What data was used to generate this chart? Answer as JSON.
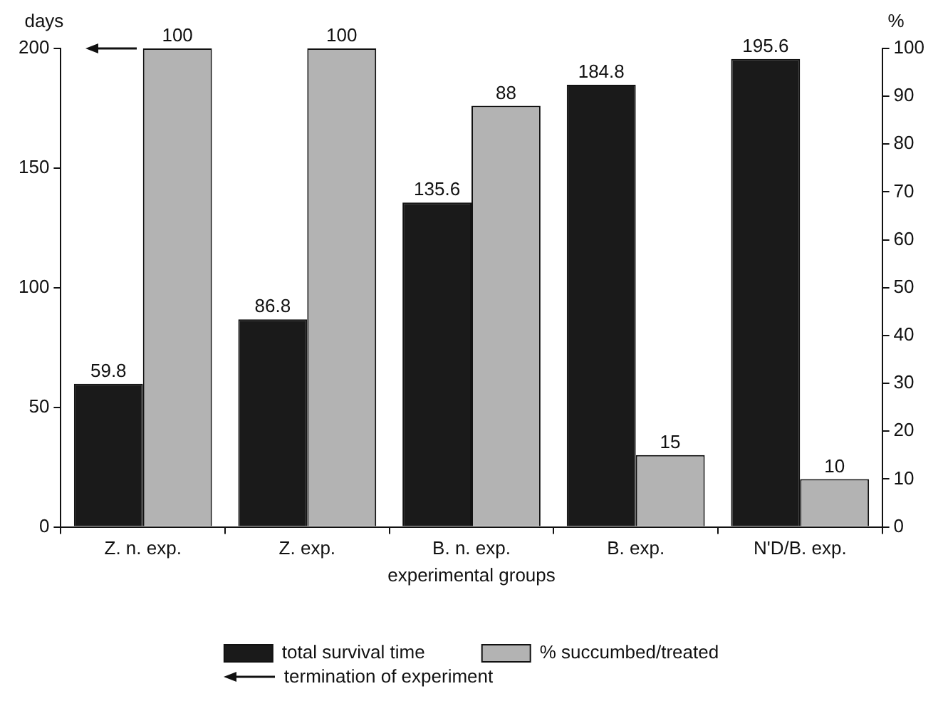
{
  "chart_data": {
    "type": "bar",
    "xlabel": "experimental groups",
    "ylabel": "days",
    "y2label": "%",
    "categories": [
      "Z. n. exp.",
      "Z. exp.",
      "B. n. exp.",
      "B. exp.",
      "N'D/B. exp."
    ],
    "series": [
      {
        "name": "total survival time",
        "color": "#1a1a1a",
        "values": [
          59.8,
          86.8,
          135.6,
          184.8,
          195.6
        ]
      },
      {
        "name": "% succumbed/treated",
        "color": "#b3b3b3",
        "axis": "y2",
        "values": [
          100,
          100,
          88,
          15,
          10
        ]
      }
    ],
    "ylim": [
      0,
      200
    ],
    "yticks": [
      0,
      50,
      100,
      150,
      200
    ],
    "y2lim": [
      0,
      100
    ],
    "y2ticks": [
      0,
      10,
      20,
      30,
      40,
      50,
      60,
      70,
      80,
      90,
      100
    ],
    "grid": false,
    "legend": "bottom",
    "data_labels": true,
    "annotations": [
      "termination of experiment"
    ]
  }
}
